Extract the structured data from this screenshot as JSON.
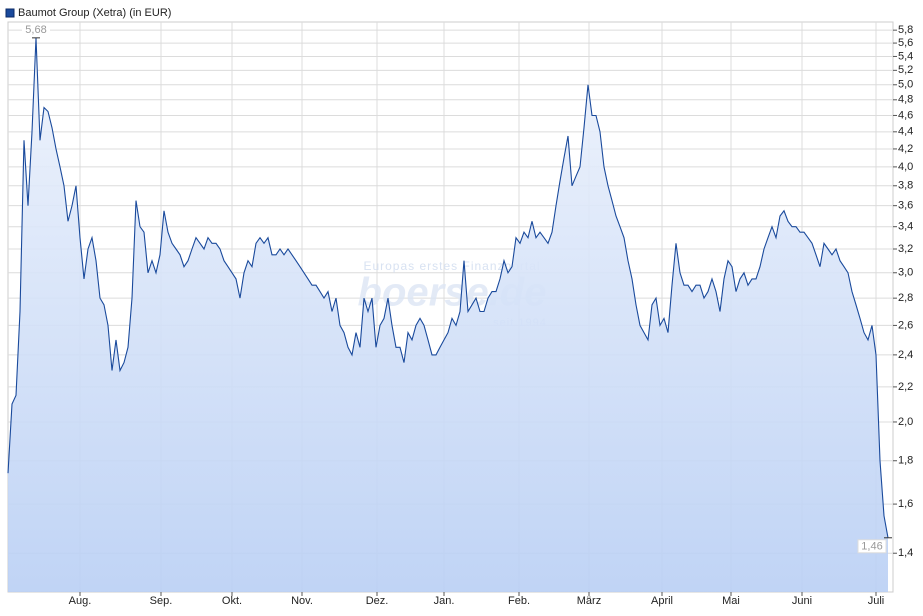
{
  "chart_data": {
    "type": "area",
    "legend_label": "Baumot Group (Xetra) (in EUR)",
    "watermark": {
      "tagline": "Europas erstes Finanzportal",
      "brand": "boerse.de",
      "since": "seit 1994"
    },
    "log_scale": true,
    "grid": true,
    "line_color": "#1a4a9c",
    "fill_top": "#eef3fc",
    "fill_bottom": "#b9cff4",
    "x": [
      0,
      1,
      2,
      3,
      4,
      5,
      6,
      7,
      8,
      9,
      10,
      11,
      12,
      13,
      14,
      15,
      16,
      17,
      18,
      19,
      20,
      21,
      22,
      23,
      24,
      25,
      26,
      27,
      28,
      29,
      30,
      31,
      32,
      33,
      34,
      35,
      36,
      37,
      38,
      39,
      40,
      41,
      42,
      43,
      44,
      45,
      46,
      47,
      48,
      49,
      50,
      51,
      52,
      53,
      54,
      55,
      56,
      57,
      58,
      59,
      60,
      61,
      62,
      63,
      64,
      65,
      66,
      67,
      68,
      69,
      70,
      71,
      72,
      73,
      74,
      75,
      76,
      77,
      78,
      79,
      80,
      81,
      82,
      83,
      84,
      85,
      86,
      87,
      88,
      89,
      90,
      91,
      92,
      93,
      94,
      95,
      96,
      97,
      98,
      99,
      100,
      101,
      102,
      103,
      104,
      105,
      106,
      107,
      108,
      109,
      110,
      111,
      112,
      113,
      114,
      115,
      116,
      117,
      118,
      119,
      120,
      121,
      122,
      123,
      124,
      125,
      126,
      127,
      128,
      129,
      130,
      131,
      132,
      133,
      134,
      135,
      136,
      137,
      138,
      139,
      140,
      141,
      142,
      143,
      144,
      145,
      146,
      147,
      148,
      149,
      150,
      151,
      152,
      153,
      154,
      155,
      156,
      157,
      158,
      159,
      160,
      161,
      162,
      163,
      164,
      165,
      166,
      167,
      168,
      169,
      170,
      171,
      172,
      173,
      174,
      175,
      176,
      177,
      178,
      179,
      180,
      181,
      182,
      183,
      184,
      185,
      186,
      187,
      188,
      189,
      190,
      191,
      192,
      193,
      194,
      195,
      196,
      197,
      198,
      199,
      200,
      201,
      202,
      203,
      204,
      205,
      206,
      207,
      208,
      209,
      210,
      211,
      212,
      213,
      214,
      215,
      216,
      217,
      218,
      219,
      220
    ],
    "values": [
      1.74,
      2.1,
      2.15,
      2.7,
      4.3,
      3.6,
      4.4,
      5.68,
      4.3,
      4.7,
      4.65,
      4.45,
      4.2,
      4.0,
      3.8,
      3.45,
      3.6,
      3.8,
      3.3,
      2.95,
      3.2,
      3.3,
      3.1,
      2.8,
      2.75,
      2.6,
      2.3,
      2.5,
      2.3,
      2.35,
      2.45,
      2.8,
      3.65,
      3.4,
      3.35,
      3.0,
      3.1,
      3.0,
      3.15,
      3.55,
      3.35,
      3.25,
      3.2,
      3.15,
      3.05,
      3.1,
      3.2,
      3.3,
      3.25,
      3.2,
      3.3,
      3.25,
      3.25,
      3.2,
      3.1,
      3.05,
      3.0,
      2.95,
      2.8,
      3.0,
      3.1,
      3.05,
      3.25,
      3.3,
      3.25,
      3.3,
      3.15,
      3.15,
      3.2,
      3.15,
      3.2,
      3.15,
      3.1,
      3.05,
      3.0,
      2.95,
      2.9,
      2.9,
      2.85,
      2.8,
      2.85,
      2.7,
      2.8,
      2.6,
      2.55,
      2.45,
      2.4,
      2.55,
      2.45,
      2.8,
      2.7,
      2.8,
      2.45,
      2.6,
      2.65,
      2.8,
      2.6,
      2.45,
      2.45,
      2.35,
      2.55,
      2.5,
      2.6,
      2.65,
      2.6,
      2.5,
      2.4,
      2.4,
      2.45,
      2.5,
      2.55,
      2.65,
      2.6,
      2.7,
      3.1,
      2.7,
      2.75,
      2.8,
      2.7,
      2.7,
      2.8,
      2.85,
      2.85,
      2.95,
      3.1,
      3.0,
      3.05,
      3.3,
      3.25,
      3.35,
      3.3,
      3.45,
      3.3,
      3.35,
      3.3,
      3.25,
      3.35,
      3.6,
      3.85,
      4.1,
      4.35,
      3.8,
      3.9,
      4.0,
      4.45,
      5.0,
      4.6,
      4.6,
      4.4,
      4.0,
      3.8,
      3.65,
      3.5,
      3.4,
      3.3,
      3.1,
      2.95,
      2.75,
      2.6,
      2.55,
      2.5,
      2.75,
      2.8,
      2.6,
      2.65,
      2.55,
      2.9,
      3.25,
      3.0,
      2.9,
      2.9,
      2.85,
      2.9,
      2.9,
      2.8,
      2.85,
      2.95,
      2.85,
      2.7,
      2.95,
      3.1,
      3.05,
      2.85,
      2.95,
      3.0,
      2.9,
      2.95,
      2.95,
      3.05,
      3.2,
      3.3,
      3.4,
      3.3,
      3.5,
      3.55,
      3.45,
      3.4,
      3.4,
      3.35,
      3.35,
      3.3,
      3.25,
      3.15,
      3.05,
      3.25,
      3.2,
      3.15,
      3.2,
      3.1,
      3.05,
      3.0,
      2.85,
      2.75,
      2.65,
      2.55,
      2.5,
      2.6,
      2.4,
      1.8,
      1.55,
      1.46
    ],
    "annotations": [
      {
        "x": 7,
        "y": 5.68,
        "label": "5,68"
      },
      {
        "x": 220,
        "y": 1.46,
        "label": "1,46"
      }
    ],
    "xlim": [
      0,
      221.25
    ],
    "xticks": [
      {
        "value": 18,
        "label": "Aug."
      },
      {
        "value": 38.25,
        "label": "Sep."
      },
      {
        "value": 56,
        "label": "Okt."
      },
      {
        "value": 73.5,
        "label": "Nov."
      },
      {
        "value": 92.25,
        "label": "Dez."
      },
      {
        "value": 109,
        "label": "Jan."
      },
      {
        "value": 127.75,
        "label": "Feb."
      },
      {
        "value": 145.25,
        "label": "März"
      },
      {
        "value": 163.5,
        "label": "April"
      },
      {
        "value": 180.75,
        "label": "Mai"
      },
      {
        "value": 198.5,
        "label": "Juni"
      },
      {
        "value": 217,
        "label": "Juli"
      }
    ],
    "ylim": [
      1.26,
      5.93
    ],
    "yticks": [
      {
        "value": 1.4,
        "label": "1,4"
      },
      {
        "value": 1.6,
        "label": "1,6"
      },
      {
        "value": 1.8,
        "label": "1,8"
      },
      {
        "value": 2.0,
        "label": "2,0"
      },
      {
        "value": 2.2,
        "label": "2,2"
      },
      {
        "value": 2.4,
        "label": "2,4"
      },
      {
        "value": 2.6,
        "label": "2,6"
      },
      {
        "value": 2.8,
        "label": "2,8"
      },
      {
        "value": 3.0,
        "label": "3,0"
      },
      {
        "value": 3.2,
        "label": "3,2"
      },
      {
        "value": 3.4,
        "label": "3,4"
      },
      {
        "value": 3.6,
        "label": "3,6"
      },
      {
        "value": 3.8,
        "label": "3,8"
      },
      {
        "value": 4.0,
        "label": "4,0"
      },
      {
        "value": 4.2,
        "label": "4,2"
      },
      {
        "value": 4.4,
        "label": "4,4"
      },
      {
        "value": 4.6,
        "label": "4,6"
      },
      {
        "value": 4.8,
        "label": "4,8"
      },
      {
        "value": 5.0,
        "label": "5,0"
      },
      {
        "value": 5.2,
        "label": "5,2"
      },
      {
        "value": 5.4,
        "label": "5,4"
      },
      {
        "value": 5.6,
        "label": "5,6"
      },
      {
        "value": 5.8,
        "label": "5,8"
      }
    ]
  }
}
